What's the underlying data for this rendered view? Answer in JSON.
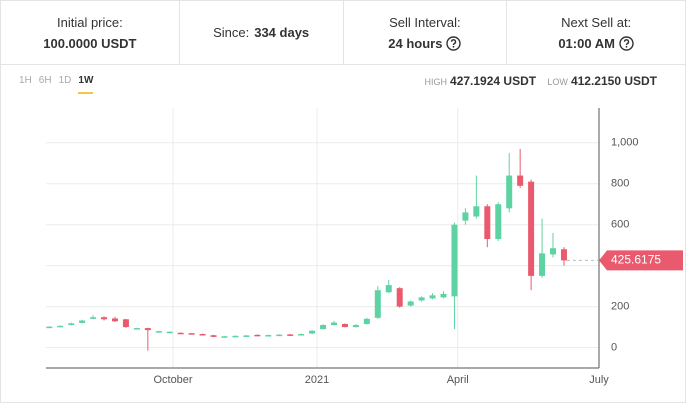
{
  "header": {
    "initial_price": {
      "label": "Initial price:",
      "value": "100.0000 USDT"
    },
    "since": {
      "label": "Since:",
      "value": "334 days"
    },
    "sell_interval": {
      "label": "Sell Interval:",
      "value": "24 hours"
    },
    "next_sell": {
      "label": "Next Sell at:",
      "value": "01:00 AM"
    }
  },
  "tabs": [
    "1H",
    "6H",
    "1D",
    "1W"
  ],
  "active_tab": 3,
  "high": {
    "label": "HIGH",
    "value": "427.1924 USDT"
  },
  "low": {
    "label": "LOW",
    "value": "412.2150 USDT"
  },
  "chart_data": {
    "type": "candlestick",
    "open": [
      97,
      103,
      110,
      120,
      140,
      148,
      142,
      138,
      92,
      95,
      76,
      74,
      72,
      70,
      66,
      60,
      52,
      55,
      56,
      62,
      60,
      61,
      64,
      62,
      68,
      90,
      110,
      115,
      100,
      115,
      145,
      270,
      290,
      205,
      230,
      240,
      245,
      250,
      620,
      640,
      690,
      530,
      680,
      840,
      810,
      350,
      455,
      480
    ],
    "high": [
      104,
      108,
      122,
      136,
      158,
      152,
      150,
      140,
      97,
      97,
      82,
      79,
      74,
      70,
      68,
      62,
      57,
      59,
      61,
      64,
      63,
      65,
      66,
      68,
      85,
      114,
      130,
      118,
      114,
      145,
      300,
      330,
      295,
      230,
      250,
      265,
      275,
      610,
      680,
      840,
      700,
      710,
      950,
      970,
      820,
      630,
      560,
      490
    ],
    "low": [
      95,
      101,
      108,
      118,
      138,
      132,
      125,
      96,
      90,
      -15,
      74,
      72,
      68,
      64,
      60,
      50,
      50,
      53,
      54,
      56,
      58,
      59,
      58,
      60,
      66,
      88,
      108,
      98,
      98,
      112,
      140,
      265,
      195,
      200,
      225,
      235,
      240,
      90,
      600,
      630,
      490,
      520,
      660,
      780,
      280,
      340,
      440,
      400
    ],
    "close": [
      102,
      106,
      118,
      132,
      148,
      138,
      128,
      100,
      95,
      85,
      80,
      77,
      70,
      66,
      62,
      52,
      55,
      57,
      59,
      58,
      61,
      63,
      60,
      66,
      82,
      110,
      122,
      100,
      110,
      140,
      280,
      305,
      200,
      225,
      245,
      255,
      262,
      600,
      660,
      690,
      530,
      700,
      840,
      790,
      350,
      460,
      485,
      425.6175
    ],
    "up_color": "#5dd3a3",
    "down_color": "#ea5a6f",
    "last_price": 425.6175,
    "ylim": [
      -100,
      1170
    ],
    "yticks": [
      0,
      200,
      400,
      600,
      800,
      {
        "value": 1000,
        "label": "1,000"
      }
    ],
    "xlim": [
      -0.3,
      50.2
    ],
    "xticks": [
      {
        "value": 11.3,
        "label": "October"
      },
      {
        "value": 24.45,
        "label": "2021"
      },
      {
        "value": 37.3,
        "label": "April"
      },
      {
        "value": 50.2,
        "label": "July"
      }
    ],
    "grid": true
  }
}
